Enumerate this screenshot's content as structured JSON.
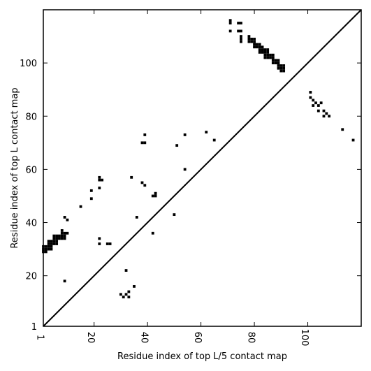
{
  "chart_data": {
    "type": "scatter",
    "xlabel": "Residue index of top L/5 contact map",
    "ylabel": "Residue index of top L contact map",
    "xlim": [
      1,
      120
    ],
    "ylim": [
      1,
      120
    ],
    "xticks": [
      1,
      20,
      40,
      60,
      80,
      100
    ],
    "yticks": [
      1,
      20,
      40,
      60,
      80,
      100
    ],
    "diagonal": true,
    "marker_color": "#000000",
    "points_L": [
      [
        1,
        29
      ],
      [
        1,
        30
      ],
      [
        1,
        31
      ],
      [
        2,
        29
      ],
      [
        2,
        30
      ],
      [
        2,
        31
      ],
      [
        3,
        30
      ],
      [
        3,
        31
      ],
      [
        3,
        32
      ],
      [
        3,
        33
      ],
      [
        4,
        30
      ],
      [
        4,
        31
      ],
      [
        4,
        32
      ],
      [
        4,
        33
      ],
      [
        5,
        32
      ],
      [
        5,
        33
      ],
      [
        5,
        34
      ],
      [
        5,
        35
      ],
      [
        6,
        32
      ],
      [
        6,
        33
      ],
      [
        6,
        34
      ],
      [
        6,
        35
      ],
      [
        7,
        34
      ],
      [
        7,
        35
      ],
      [
        8,
        34
      ],
      [
        8,
        35
      ],
      [
        8,
        36
      ],
      [
        8,
        37
      ],
      [
        9,
        34
      ],
      [
        9,
        35
      ],
      [
        9,
        36
      ],
      [
        10,
        36
      ],
      [
        9,
        42
      ],
      [
        10,
        41
      ],
      [
        9,
        18
      ],
      [
        15,
        46
      ],
      [
        19,
        49
      ],
      [
        19,
        52
      ],
      [
        22,
        53
      ],
      [
        22,
        56
      ],
      [
        22,
        57
      ],
      [
        23,
        56
      ],
      [
        22,
        32
      ],
      [
        22,
        34
      ],
      [
        25,
        32
      ],
      [
        26,
        32
      ],
      [
        34,
        57
      ],
      [
        38,
        55
      ],
      [
        39,
        54
      ],
      [
        38,
        70
      ],
      [
        39,
        70
      ],
      [
        39,
        73
      ],
      [
        42,
        50
      ],
      [
        43,
        50
      ],
      [
        43,
        51
      ],
      [
        36,
        42
      ],
      [
        42,
        36
      ],
      [
        50,
        43
      ],
      [
        51,
        69
      ],
      [
        54,
        60
      ],
      [
        54,
        73
      ],
      [
        62,
        74
      ],
      [
        65,
        71
      ],
      [
        32,
        22
      ],
      [
        71,
        112
      ],
      [
        71,
        115
      ],
      [
        71,
        116
      ],
      [
        74,
        112
      ],
      [
        74,
        115
      ],
      [
        75,
        112
      ],
      [
        75,
        115
      ],
      [
        75,
        108
      ],
      [
        75,
        109
      ],
      [
        75,
        110
      ],
      [
        78,
        108
      ],
      [
        78,
        109
      ],
      [
        78,
        110
      ],
      [
        79,
        108
      ],
      [
        79,
        109
      ],
      [
        80,
        106
      ],
      [
        80,
        107
      ],
      [
        80,
        108
      ],
      [
        80,
        109
      ],
      [
        81,
        106
      ],
      [
        81,
        107
      ],
      [
        82,
        104
      ],
      [
        82,
        105
      ],
      [
        82,
        106
      ],
      [
        82,
        107
      ],
      [
        83,
        104
      ],
      [
        83,
        105
      ],
      [
        83,
        106
      ],
      [
        84,
        102
      ],
      [
        84,
        103
      ],
      [
        84,
        104
      ],
      [
        84,
        105
      ],
      [
        85,
        102
      ],
      [
        85,
        103
      ],
      [
        85,
        104
      ],
      [
        85,
        105
      ],
      [
        86,
        102
      ],
      [
        86,
        103
      ],
      [
        87,
        100
      ],
      [
        87,
        101
      ],
      [
        87,
        102
      ],
      [
        87,
        103
      ],
      [
        88,
        100
      ],
      [
        88,
        101
      ],
      [
        89,
        98
      ],
      [
        89,
        99
      ],
      [
        89,
        100
      ],
      [
        89,
        101
      ],
      [
        90,
        97
      ],
      [
        90,
        98
      ],
      [
        90,
        99
      ],
      [
        91,
        97
      ],
      [
        91,
        98
      ],
      [
        91,
        99
      ],
      [
        101,
        87
      ],
      [
        101,
        89
      ],
      [
        102,
        84
      ],
      [
        102,
        86
      ],
      [
        103,
        85
      ],
      [
        104,
        82
      ],
      [
        104,
        84
      ],
      [
        105,
        85
      ],
      [
        106,
        80
      ],
      [
        106,
        82
      ],
      [
        107,
        81
      ],
      [
        108,
        80
      ],
      [
        113,
        75
      ],
      [
        117,
        71
      ]
    ],
    "points_L5": [
      [
        30,
        13
      ],
      [
        31,
        12
      ],
      [
        32,
        13
      ],
      [
        33,
        12
      ],
      [
        33,
        14
      ],
      [
        35,
        16
      ]
    ]
  }
}
